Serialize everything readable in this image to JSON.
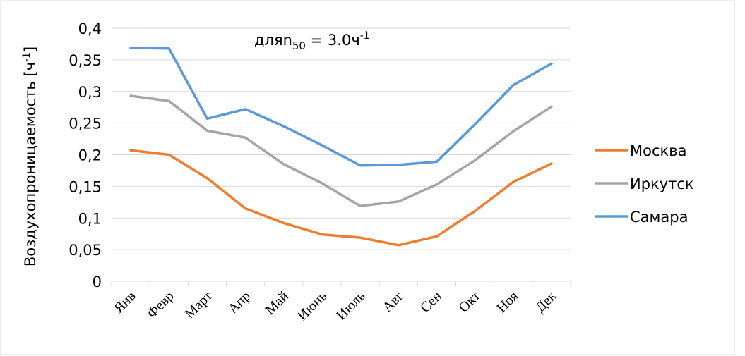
{
  "chart_data": {
    "type": "line",
    "y_label": {
      "main": "Воздухопроницаемость [ч",
      "sup": "-1",
      "end": "]"
    },
    "annotation": {
      "prefix": "для",
      "main": "n",
      "sub": "50",
      "mid": " = 3.0ч",
      "sup": "-1"
    },
    "categories": [
      "Янв",
      "Февр",
      "Март",
      "Апр",
      "Май",
      "Июнь",
      "Июль",
      "Авг",
      "Сен",
      "Окт",
      "Ноя",
      "Дек"
    ],
    "series": [
      {
        "name": "Москва",
        "color": "#ed7d31",
        "values": [
          0.207,
          0.2,
          0.163,
          0.115,
          0.092,
          0.074,
          0.069,
          0.057,
          0.071,
          0.111,
          0.157,
          0.186
        ]
      },
      {
        "name": "Иркутск",
        "color": "#a5a5a5",
        "values": [
          0.293,
          0.285,
          0.238,
          0.227,
          0.185,
          0.155,
          0.119,
          0.126,
          0.153,
          0.191,
          0.237,
          0.276
        ]
      },
      {
        "name": "Самара",
        "color": "#5b9bd5",
        "values": [
          0.369,
          0.368,
          0.257,
          0.272,
          0.245,
          0.215,
          0.183,
          0.184,
          0.189,
          0.248,
          0.31,
          0.344
        ]
      }
    ],
    "ylim": [
      0,
      0.4
    ],
    "yticks": [
      0,
      {
        "value": 0.05,
        "label": "0,05"
      },
      {
        "value": 0.1,
        "label": "0,1"
      },
      {
        "value": 0.15,
        "label": "0,15"
      },
      {
        "value": 0.2,
        "label": "0,2"
      },
      {
        "value": 0.25,
        "label": "0,25"
      },
      {
        "value": 0.3,
        "label": "0,3"
      },
      {
        "value": 0.35,
        "label": "0,35"
      },
      {
        "value": 0.4,
        "label": "0,4"
      }
    ],
    "grid": true,
    "legend": "right"
  }
}
